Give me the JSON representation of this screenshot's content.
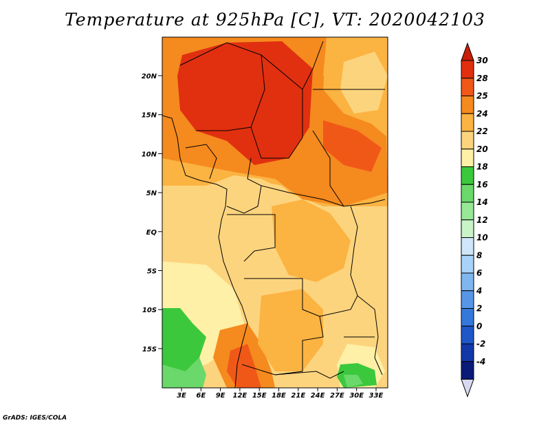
{
  "title": "Temperature at 925hPa [C], VT: 2020042103",
  "credit": "GrADS: IGES/COLA",
  "map": {
    "lat_ticks": [
      "20N",
      "15N",
      "10N",
      "5N",
      "EQ",
      "5S",
      "10S",
      "15S"
    ],
    "lon_ticks": [
      "3E",
      "6E",
      "9E",
      "12E",
      "15E",
      "18E",
      "21E",
      "24E",
      "27E",
      "30E",
      "33E"
    ]
  },
  "colorbar": {
    "labels": [
      "30",
      "28",
      "25",
      "24",
      "22",
      "20",
      "18",
      "16",
      "14",
      "12",
      "10",
      "8",
      "6",
      "4",
      "2",
      "0",
      "-2",
      "-4"
    ],
    "colors": [
      "#e03010",
      "#f05818",
      "#f58a1e",
      "#fbb342",
      "#fdd47e",
      "#fef0a6",
      "#3cc83c",
      "#6ad86a",
      "#96e896",
      "#c8f4c8",
      "#cfe6fa",
      "#a8d2f7",
      "#7fb6ef",
      "#5796e6",
      "#3478dc",
      "#1e58c8",
      "#1238a8",
      "#0a1a78"
    ],
    "max_arrow_color": "#c81e0a",
    "min_arrow_color": "#d8d8f0"
  }
}
